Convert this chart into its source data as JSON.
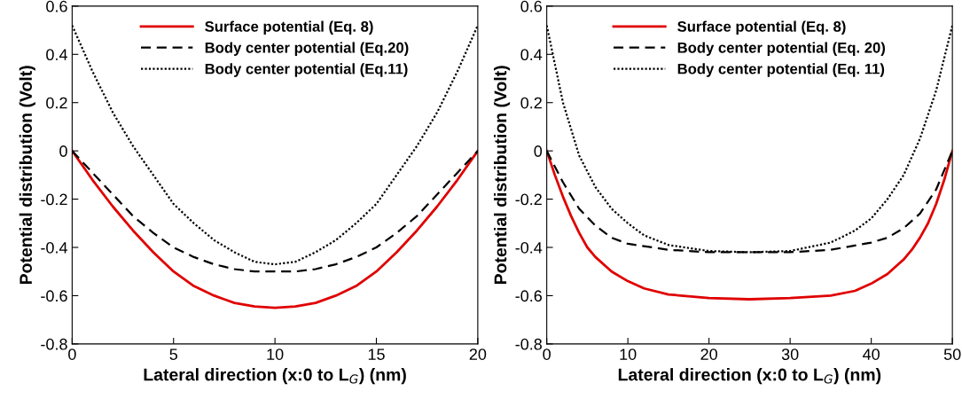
{
  "chart_data": [
    {
      "type": "line",
      "xlabel": "Lateral direction (x:0 to L$_{G}$) (nm)",
      "ylabel": "Potential distribution (Volt)",
      "xlim": [
        0,
        20
      ],
      "xticks": [
        0,
        5,
        10,
        15,
        20
      ],
      "ylim": [
        -0.8,
        0.6
      ],
      "yticks": [
        -0.8,
        -0.6,
        -0.4,
        -0.2,
        0,
        0.2,
        0.4,
        0.6
      ],
      "legend": "top",
      "grid": false,
      "marker": "none",
      "x": [
        0,
        1,
        2,
        3,
        4,
        5,
        6,
        7,
        8,
        9,
        10,
        11,
        12,
        13,
        14,
        15,
        16,
        17,
        18,
        19,
        20
      ],
      "series": [
        {
          "name": "Surface potential (Eq. 8)",
          "color": "#e00000",
          "line_style": "solid",
          "values": [
            0,
            -0.12,
            -0.23,
            -0.33,
            -0.42,
            -0.5,
            -0.56,
            -0.6,
            -0.63,
            -0.645,
            -0.65,
            -0.645,
            -0.63,
            -0.6,
            -0.56,
            -0.5,
            -0.42,
            -0.33,
            -0.23,
            -0.12,
            0
          ]
        },
        {
          "name": "Body center potential (Eq.20)",
          "color": "#000000",
          "line_style": "dashed",
          "values": [
            0,
            -0.09,
            -0.18,
            -0.27,
            -0.34,
            -0.4,
            -0.44,
            -0.47,
            -0.49,
            -0.5,
            -0.5,
            -0.5,
            -0.49,
            -0.47,
            -0.44,
            -0.4,
            -0.34,
            -0.27,
            -0.18,
            -0.09,
            0
          ]
        },
        {
          "name": "Body center potential (Eq.11)",
          "color": "#000000",
          "line_style": "dotted",
          "values": [
            0.52,
            0.33,
            0.16,
            0.02,
            -0.1,
            -0.22,
            -0.3,
            -0.37,
            -0.42,
            -0.46,
            -0.47,
            -0.46,
            -0.42,
            -0.37,
            -0.3,
            -0.22,
            -0.1,
            0.02,
            0.16,
            0.33,
            0.52
          ]
        }
      ]
    },
    {
      "type": "line",
      "xlabel": "Lateral direction (x:0 to L$_{G}$) (nm)",
      "ylabel": "Potential distribution (Volt)",
      "xlim": [
        0,
        50
      ],
      "xticks": [
        0,
        10,
        20,
        30,
        40,
        50
      ],
      "ylim": [
        -0.8,
        0.6
      ],
      "yticks": [
        -0.8,
        -0.6,
        -0.4,
        -0.2,
        0,
        0.2,
        0.4,
        0.6
      ],
      "legend": "top",
      "grid": false,
      "marker": "none",
      "series": [
        {
          "name": "Surface potential (Eq. 8)",
          "color": "#e00000",
          "line_style": "solid",
          "x": [
            0,
            1,
            2,
            3,
            4,
            5,
            6,
            8,
            10,
            12,
            15,
            20,
            25,
            30,
            35,
            38,
            40,
            42,
            44,
            45,
            46,
            47,
            48,
            49,
            50
          ],
          "values": [
            0,
            -0.1,
            -0.19,
            -0.27,
            -0.34,
            -0.4,
            -0.44,
            -0.5,
            -0.54,
            -0.57,
            -0.595,
            -0.61,
            -0.615,
            -0.61,
            -0.6,
            -0.58,
            -0.55,
            -0.51,
            -0.45,
            -0.41,
            -0.36,
            -0.3,
            -0.22,
            -0.12,
            0
          ]
        },
        {
          "name": "Body center potential (Eq. 20)",
          "color": "#000000",
          "line_style": "dashed",
          "x": [
            0,
            2,
            4,
            6,
            8,
            10,
            15,
            20,
            25,
            30,
            35,
            40,
            42,
            44,
            46,
            48,
            50
          ],
          "values": [
            0,
            -0.13,
            -0.24,
            -0.31,
            -0.36,
            -0.385,
            -0.41,
            -0.42,
            -0.42,
            -0.42,
            -0.41,
            -0.38,
            -0.36,
            -0.32,
            -0.26,
            -0.16,
            0
          ]
        },
        {
          "name": "Body center potential (Eq. 11)",
          "color": "#000000",
          "line_style": "dotted",
          "x": [
            0,
            2,
            4,
            6,
            8,
            10,
            12,
            15,
            20,
            25,
            30,
            35,
            38,
            40,
            42,
            44,
            46,
            48,
            50
          ],
          "values": [
            0.52,
            0.2,
            -0.02,
            -0.15,
            -0.24,
            -0.3,
            -0.35,
            -0.39,
            -0.415,
            -0.42,
            -0.415,
            -0.38,
            -0.33,
            -0.28,
            -0.2,
            -0.1,
            0.05,
            0.25,
            0.52
          ]
        }
      ]
    }
  ]
}
